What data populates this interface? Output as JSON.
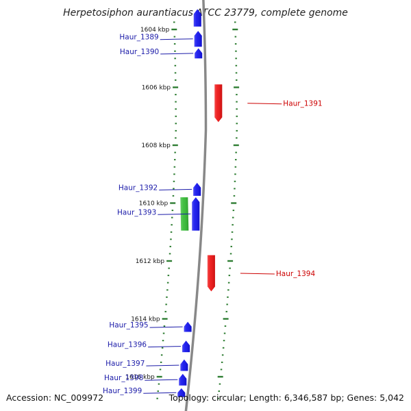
{
  "title": "Herpetosiphon aurantiacus ATCC 23779, complete genome",
  "footer": {
    "accession": "Accession: NC_009972",
    "summary": "Topology: circular; Length: 6,346,587 bp; Genes: 5,042"
  },
  "colors": {
    "forward_cds": "#1010ee",
    "reverse_cds": "#ee1010",
    "rna": "#33bb33",
    "backbone": "#888888",
    "ticks": "#2e7d32",
    "forward_label": "#1a1aa8",
    "reverse_label": "#cc0000"
  },
  "chart_data": {
    "type": "genome_map",
    "unit": "kbp",
    "ticks": [
      {
        "kbp": 1604,
        "label": "1604 kbp"
      },
      {
        "kbp": 1606,
        "label": "1606 kbp"
      },
      {
        "kbp": 1608,
        "label": "1608 kbp"
      },
      {
        "kbp": 1610,
        "label": "1610 kbp"
      },
      {
        "kbp": 1612,
        "label": "1612 kbp"
      },
      {
        "kbp": 1614,
        "label": "1614 kbp"
      },
      {
        "kbp": 1616,
        "label": "1616 kbp"
      }
    ],
    "features": [
      {
        "label": "",
        "strand": "+",
        "kind": "cds",
        "start_kbp": 1603.3,
        "end_kbp": 1603.9
      },
      {
        "label": "Haur_1389",
        "strand": "+",
        "kind": "cds",
        "start_kbp": 1604.05,
        "end_kbp": 1604.6
      },
      {
        "label": "Haur_1390",
        "strand": "+",
        "kind": "cds",
        "start_kbp": 1604.65,
        "end_kbp": 1605.0
      },
      {
        "label": "Haur_1391",
        "strand": "-",
        "kind": "cds",
        "start_kbp": 1605.9,
        "end_kbp": 1607.2
      },
      {
        "label": "Haur_1392",
        "strand": "+",
        "kind": "cds",
        "start_kbp": 1609.3,
        "end_kbp": 1609.75
      },
      {
        "label": "",
        "strand": "+",
        "kind": "rna",
        "start_kbp": 1609.8,
        "end_kbp": 1610.95
      },
      {
        "label": "Haur_1393",
        "strand": "+",
        "kind": "cds",
        "start_kbp": 1609.8,
        "end_kbp": 1610.95
      },
      {
        "label": "Haur_1394",
        "strand": "-",
        "kind": "cds",
        "start_kbp": 1611.8,
        "end_kbp": 1613.05
      },
      {
        "label": "Haur_1395",
        "strand": "+",
        "kind": "cds",
        "start_kbp": 1614.1,
        "end_kbp": 1614.45
      },
      {
        "label": "Haur_1396",
        "strand": "+",
        "kind": "cds",
        "start_kbp": 1614.75,
        "end_kbp": 1615.15
      },
      {
        "label": "Haur_1397",
        "strand": "+",
        "kind": "cds",
        "start_kbp": 1615.4,
        "end_kbp": 1615.8
      },
      {
        "label": "Haur_1398",
        "strand": "+",
        "kind": "cds",
        "start_kbp": 1615.9,
        "end_kbp": 1616.3
      },
      {
        "label": "Haur_1399",
        "strand": "+",
        "kind": "cds",
        "start_kbp": 1616.4,
        "end_kbp": 1616.7
      }
    ]
  }
}
